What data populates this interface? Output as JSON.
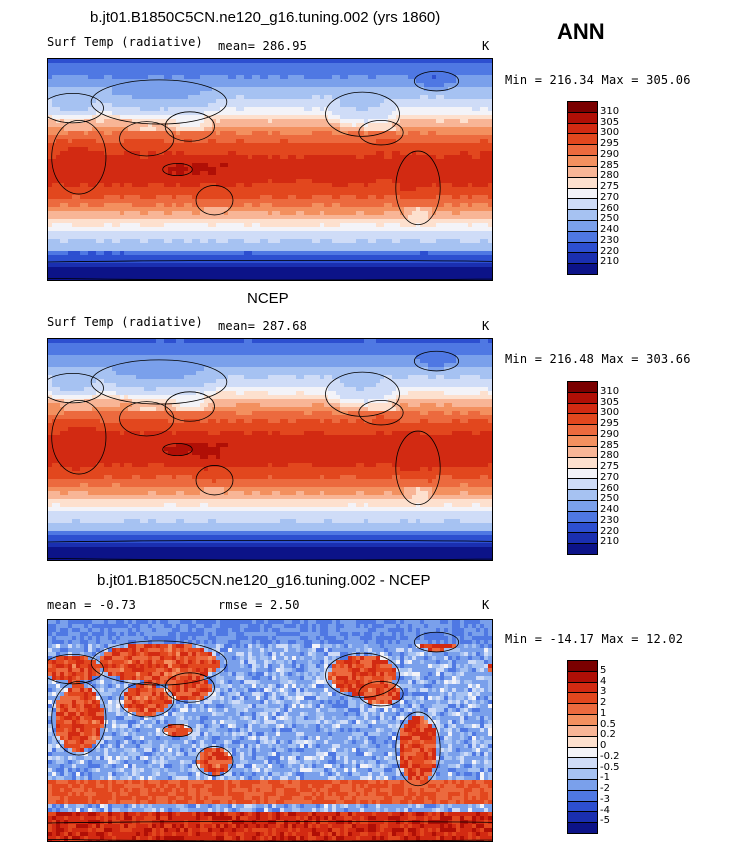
{
  "season": "ANN",
  "panels": [
    {
      "title": "b.jt01.B1850C5CN.ne120_g16.tuning.002 (yrs 1860)",
      "left": "Surf Temp (radiative)",
      "middle": "mean= 286.95",
      "unit": "K",
      "minmax": "Min = 216.34 Max = 305.06",
      "colorbar_labels": [
        "310",
        "305",
        "300",
        "295",
        "290",
        "285",
        "280",
        "275",
        "270",
        "260",
        "250",
        "240",
        "230",
        "220",
        "210"
      ],
      "field": "model"
    },
    {
      "title": "NCEP",
      "left": "Surf Temp (radiative)",
      "middle": "mean= 287.68",
      "unit": "K",
      "minmax": "Min = 216.48 Max = 303.66",
      "colorbar_labels": [
        "310",
        "305",
        "300",
        "295",
        "290",
        "285",
        "280",
        "275",
        "270",
        "260",
        "250",
        "240",
        "230",
        "220",
        "210"
      ],
      "field": "obs"
    },
    {
      "title": "b.jt01.B1850C5CN.ne120_g16.tuning.002 - NCEP",
      "left": "mean =   -0.73",
      "middle": "rmse =    2.50",
      "unit": "K",
      "minmax": "Min = -14.17 Max =  12.02",
      "colorbar_labels": [
        "5",
        "4",
        "3",
        "2",
        "1",
        "0.5",
        "0.2",
        "0",
        "-0.2",
        "-0.5",
        "-1",
        "-2",
        "-3",
        "-4",
        "-5"
      ],
      "field": "diff"
    }
  ],
  "colors": {
    "temperature_scale": [
      "#7a0000",
      "#b00f06",
      "#d22a12",
      "#e2471e",
      "#ec6a3e",
      "#f3905f",
      "#f8b596",
      "#fde0ce",
      "#f3f3f8",
      "#cfdcf7",
      "#a6c2f2",
      "#7aa0eb",
      "#4f78e3",
      "#2d4fd0",
      "#1a2fb0",
      "#0c1388"
    ],
    "difference_scale": [
      "#7a0000",
      "#b00f06",
      "#d22a12",
      "#e2471e",
      "#ec6a3e",
      "#f3905f",
      "#f8b596",
      "#fde0ce",
      "#f3f3f8",
      "#cfdcf7",
      "#a6c2f2",
      "#7aa0eb",
      "#4f78e3",
      "#2d4fd0",
      "#1a2fb0",
      "#0c1388"
    ]
  }
}
